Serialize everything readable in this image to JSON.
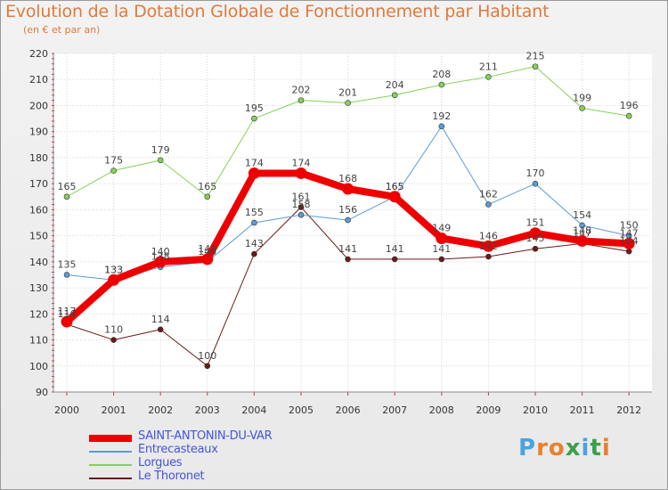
{
  "header": {
    "title": "Evolution de la Dotation Globale de Fonctionnement par Habitant",
    "subtitle": "(en € et par an)"
  },
  "logo": {
    "text": "Proxiti",
    "letters": [
      {
        "ch": "P",
        "color": "#4aa3df"
      },
      {
        "ch": "r",
        "color": "#e8812f"
      },
      {
        "ch": "o",
        "color": "#e8812f"
      },
      {
        "ch": "x",
        "color": "#3aa04a"
      },
      {
        "ch": "i",
        "color": "#4aa3df"
      },
      {
        "ch": "t",
        "color": "#3aa04a"
      },
      {
        "ch": "i",
        "color": "#e8812f"
      }
    ]
  },
  "chart_data": {
    "type": "line",
    "title": "Evolution de la Dotation Globale de Fonctionnement par Habitant",
    "subtitle": "(en € et par an)",
    "xlabel": "",
    "ylabel": "",
    "categories": [
      "2000",
      "2001",
      "2002",
      "2003",
      "2004",
      "2005",
      "2006",
      "2007",
      "2008",
      "2009",
      "2010",
      "2011",
      "2012"
    ],
    "ylim": [
      90,
      220
    ],
    "yticks": [
      90,
      100,
      110,
      120,
      130,
      140,
      150,
      160,
      170,
      180,
      190,
      200,
      210,
      220
    ],
    "grid": true,
    "legend_position": "bottom-left",
    "series": [
      {
        "name": "Le Thoronet",
        "color": "#6b1a1a",
        "width": 1,
        "values": [
          116,
          110,
          114,
          100,
          143,
          161,
          141,
          141,
          141,
          142,
          145,
          147,
          144
        ]
      },
      {
        "name": "Lorgues",
        "color": "#86d157",
        "width": 1,
        "values": [
          165,
          175,
          179,
          165,
          195,
          202,
          201,
          204,
          208,
          211,
          215,
          199,
          196
        ]
      },
      {
        "name": "Entrecasteaux",
        "color": "#5b9bd5",
        "width": 1,
        "values": [
          135,
          133,
          138,
          140,
          155,
          158,
          156,
          165,
          192,
          162,
          170,
          154,
          150
        ]
      },
      {
        "name": "SAINT-ANTONIN-DU-VAR",
        "color": "#ee0000",
        "width": 8,
        "values": [
          117,
          133,
          140,
          141,
          174,
          174,
          168,
          165,
          149,
          146,
          151,
          148,
          147
        ]
      }
    ],
    "legend_order": [
      "SAINT-ANTONIN-DU-VAR",
      "Entrecasteaux",
      "Lorgues",
      "Le Thoronet"
    ]
  }
}
